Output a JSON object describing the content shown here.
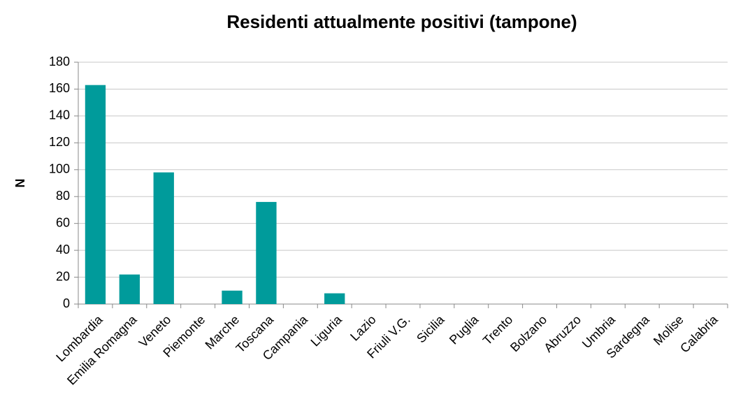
{
  "chart_data": {
    "type": "bar",
    "title": "Residenti attualmente positivi (tampone)",
    "y_label": "N",
    "categories": [
      "Lombardia",
      "Emilia Romagna",
      "Veneto",
      "Piemonte",
      "Marche",
      "Toscana",
      "Campania",
      "Liguria",
      "Lazio",
      "Friuli V.G.",
      "Sicilia",
      "Puglia",
      "Trento",
      "Bolzano",
      "Abruzzo",
      "Umbria",
      "Sardegna",
      "Molise",
      "Calabria"
    ],
    "values": [
      163,
      22,
      98,
      0,
      10,
      76,
      0,
      8,
      0,
      0,
      0,
      0,
      0,
      0,
      0,
      0,
      0,
      0,
      0
    ],
    "color": "#009b9b",
    "ylim": [
      0,
      180
    ],
    "yticks": [
      0,
      20,
      40,
      60,
      80,
      100,
      120,
      140,
      160,
      180
    ],
    "grid": true
  }
}
